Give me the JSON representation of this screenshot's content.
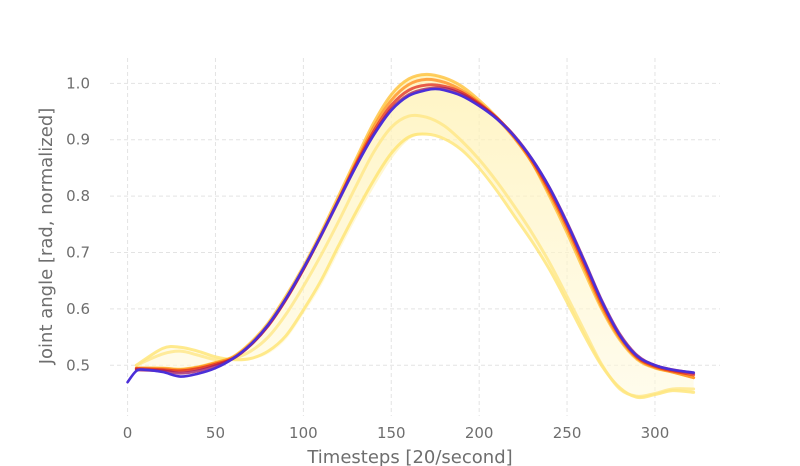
{
  "chart_data": {
    "type": "line",
    "title": "",
    "xlabel": "Timesteps [20/second]",
    "ylabel": "Joint angle [rad, normalized]",
    "xlim": [
      -10,
      337
    ],
    "ylim": [
      0.41,
      1.045
    ],
    "xticks": [
      0,
      50,
      100,
      150,
      200,
      250,
      300
    ],
    "yticks": [
      0.5,
      0.6,
      0.7,
      0.8,
      0.9,
      1.0
    ],
    "ytick_labels": [
      "0.5",
      "0.6",
      "0.7",
      "0.8",
      "0.9",
      "1.0"
    ],
    "grid": true,
    "legend": false,
    "main_series": {
      "color": "#4b2fd8",
      "x": [
        0,
        5,
        10,
        20,
        30,
        40,
        50,
        60,
        70,
        80,
        90,
        100,
        110,
        120,
        130,
        140,
        150,
        160,
        170,
        175,
        180,
        190,
        200,
        210,
        220,
        230,
        240,
        250,
        260,
        270,
        280,
        290,
        300,
        310,
        322
      ],
      "y": [
        0.47,
        0.49,
        0.492,
        0.488,
        0.48,
        0.485,
        0.495,
        0.512,
        0.537,
        0.572,
        0.618,
        0.672,
        0.73,
        0.792,
        0.853,
        0.908,
        0.952,
        0.978,
        0.988,
        0.99,
        0.988,
        0.978,
        0.96,
        0.937,
        0.906,
        0.866,
        0.815,
        0.752,
        0.683,
        0.612,
        0.553,
        0.516,
        0.5,
        0.492,
        0.487
      ]
    },
    "ensemble": {
      "color_scale": [
        "#fff5b8",
        "#ffe36a",
        "#ffbd2e",
        "#ff7f1a",
        "#e0281f",
        "#9b1260"
      ],
      "upper": {
        "x": [
          5,
          20,
          30,
          40,
          50,
          60,
          70,
          80,
          90,
          100,
          110,
          120,
          130,
          140,
          150,
          160,
          170,
          180,
          190,
          200,
          210,
          220,
          230,
          240,
          250,
          260,
          270,
          280,
          290,
          300,
          310,
          322
        ],
        "y": [
          0.5,
          0.53,
          0.532,
          0.525,
          0.515,
          0.515,
          0.54,
          0.575,
          0.622,
          0.675,
          0.735,
          0.8,
          0.866,
          0.93,
          0.98,
          1.008,
          1.016,
          1.01,
          0.995,
          0.97,
          0.94,
          0.905,
          0.86,
          0.8,
          0.735,
          0.665,
          0.595,
          0.54,
          0.508,
          0.497,
          0.49,
          0.482
        ]
      },
      "lower": {
        "x": [
          5,
          20,
          30,
          40,
          50,
          60,
          70,
          80,
          90,
          100,
          110,
          120,
          130,
          140,
          150,
          160,
          170,
          180,
          190,
          200,
          210,
          220,
          230,
          240,
          250,
          260,
          270,
          280,
          290,
          300,
          310,
          322
        ],
        "y": [
          0.49,
          0.49,
          0.493,
          0.498,
          0.505,
          0.508,
          0.51,
          0.52,
          0.545,
          0.59,
          0.64,
          0.7,
          0.76,
          0.815,
          0.865,
          0.9,
          0.91,
          0.905,
          0.885,
          0.855,
          0.815,
          0.77,
          0.725,
          0.675,
          0.615,
          0.555,
          0.5,
          0.46,
          0.443,
          0.448,
          0.455,
          0.452
        ]
      },
      "lines": [
        {
          "color": "#ffe36a",
          "x": [
            5,
            20,
            30,
            40,
            50,
            60,
            70,
            80,
            90,
            100,
            110,
            120,
            130,
            140,
            150,
            160,
            170,
            180,
            190,
            200,
            210,
            220,
            230,
            240,
            250,
            260,
            270,
            280,
            290,
            300,
            310,
            322
          ],
          "y": [
            0.5,
            0.53,
            0.532,
            0.525,
            0.515,
            0.51,
            0.512,
            0.525,
            0.552,
            0.598,
            0.65,
            0.712,
            0.772,
            0.828,
            0.876,
            0.905,
            0.91,
            0.902,
            0.882,
            0.85,
            0.81,
            0.765,
            0.72,
            0.67,
            0.612,
            0.552,
            0.498,
            0.46,
            0.443,
            0.448,
            0.455,
            0.452
          ]
        },
        {
          "color": "#ffe680",
          "x": [
            5,
            20,
            30,
            40,
            50,
            60,
            70,
            80,
            90,
            100,
            110,
            120,
            130,
            140,
            150,
            160,
            170,
            180,
            190,
            200,
            210,
            220,
            230,
            240,
            250,
            260,
            270,
            280,
            290,
            300,
            310,
            322
          ],
          "y": [
            0.5,
            0.52,
            0.525,
            0.518,
            0.51,
            0.512,
            0.525,
            0.55,
            0.59,
            0.64,
            0.695,
            0.755,
            0.818,
            0.878,
            0.922,
            0.942,
            0.94,
            0.925,
            0.898,
            0.865,
            0.826,
            0.782,
            0.735,
            0.682,
            0.622,
            0.56,
            0.5,
            0.458,
            0.445,
            0.45,
            0.458,
            0.458
          ]
        },
        {
          "color": "#ffbd2e",
          "x": [
            5,
            20,
            30,
            40,
            50,
            60,
            70,
            80,
            90,
            100,
            110,
            120,
            130,
            140,
            150,
            160,
            170,
            180,
            190,
            200,
            210,
            220,
            230,
            240,
            250,
            260,
            270,
            280,
            290,
            300,
            310,
            322
          ],
          "y": [
            0.495,
            0.495,
            0.493,
            0.497,
            0.505,
            0.515,
            0.54,
            0.575,
            0.622,
            0.675,
            0.735,
            0.8,
            0.866,
            0.93,
            0.98,
            1.008,
            1.016,
            1.01,
            0.995,
            0.97,
            0.94,
            0.905,
            0.86,
            0.8,
            0.735,
            0.665,
            0.598,
            0.545,
            0.51,
            0.495,
            0.488,
            0.478
          ]
        },
        {
          "color": "#ff8a1a",
          "x": [
            5,
            20,
            30,
            40,
            50,
            60,
            70,
            80,
            90,
            100,
            110,
            120,
            130,
            140,
            150,
            160,
            170,
            180,
            190,
            200,
            210,
            220,
            230,
            240,
            250,
            260,
            270,
            280,
            290,
            300,
            310,
            322
          ],
          "y": [
            0.495,
            0.494,
            0.492,
            0.496,
            0.504,
            0.514,
            0.538,
            0.572,
            0.618,
            0.671,
            0.73,
            0.794,
            0.86,
            0.922,
            0.97,
            0.998,
            1.007,
            1.002,
            0.988,
            0.966,
            0.938,
            0.903,
            0.86,
            0.805,
            0.742,
            0.672,
            0.602,
            0.548,
            0.512,
            0.496,
            0.488,
            0.478
          ]
        },
        {
          "color": "#e0281f",
          "x": [
            5,
            20,
            30,
            40,
            50,
            60,
            70,
            80,
            90,
            100,
            110,
            120,
            130,
            140,
            150,
            160,
            170,
            180,
            190,
            200,
            210,
            220,
            230,
            240,
            250,
            260,
            270,
            280,
            290,
            300,
            310,
            322
          ],
          "y": [
            0.494,
            0.492,
            0.49,
            0.494,
            0.502,
            0.512,
            0.536,
            0.57,
            0.616,
            0.67,
            0.73,
            0.793,
            0.857,
            0.915,
            0.961,
            0.988,
            0.997,
            0.995,
            0.984,
            0.964,
            0.939,
            0.906,
            0.864,
            0.81,
            0.748,
            0.678,
            0.608,
            0.552,
            0.514,
            0.498,
            0.49,
            0.483
          ]
        },
        {
          "color": "#9b1260",
          "x": [
            5,
            20,
            30,
            40,
            50,
            60,
            70,
            80,
            90,
            100,
            110,
            120,
            130,
            140,
            150,
            160,
            170,
            180,
            190,
            200,
            210,
            220,
            230,
            240,
            250,
            260,
            270,
            280,
            290,
            300,
            310,
            322
          ],
          "y": [
            0.492,
            0.49,
            0.486,
            0.49,
            0.499,
            0.512,
            0.536,
            0.571,
            0.617,
            0.671,
            0.73,
            0.792,
            0.854,
            0.91,
            0.954,
            0.98,
            0.99,
            0.991,
            0.981,
            0.962,
            0.938,
            0.907,
            0.866,
            0.815,
            0.753,
            0.684,
            0.613,
            0.555,
            0.517,
            0.5,
            0.492,
            0.486
          ]
        }
      ]
    }
  }
}
